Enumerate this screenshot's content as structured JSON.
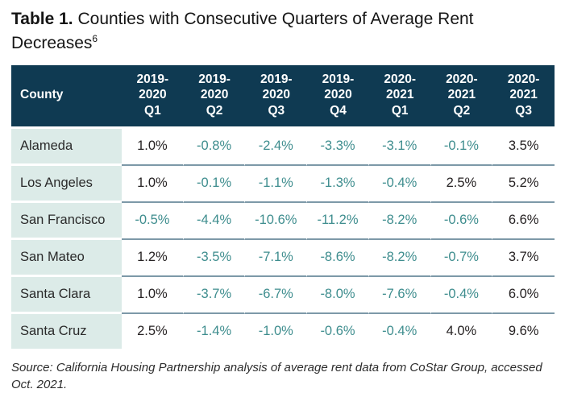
{
  "title": {
    "prefix": "Table 1.",
    "text": " Counties with Consecutive Quarters of Average Rent Decreases",
    "footnote": "6"
  },
  "table": {
    "columns": [
      "County",
      "2019-\n2020\nQ1",
      "2019-\n2020\nQ2",
      "2019-\n2020\nQ3",
      "2019-\n2020\nQ4",
      "2020-\n2021\nQ1",
      "2020-\n2021\nQ2",
      "2020-\n2021\nQ3"
    ],
    "rows": [
      {
        "county": "Alameda",
        "values": [
          "1.0%",
          "-0.8%",
          "-2.4%",
          "-3.3%",
          "-3.1%",
          "-0.1%",
          "3.5%"
        ]
      },
      {
        "county": "Los Angeles",
        "values": [
          "1.0%",
          "-0.1%",
          "-1.1%",
          "-1.3%",
          "-0.4%",
          "2.5%",
          "5.2%"
        ]
      },
      {
        "county": "San Francisco",
        "values": [
          "-0.5%",
          "-4.4%",
          "-10.6%",
          "-11.2%",
          "-8.2%",
          "-0.6%",
          "6.6%"
        ]
      },
      {
        "county": "San Mateo",
        "values": [
          "1.2%",
          "-3.5%",
          "-7.1%",
          "-8.6%",
          "-8.2%",
          "-0.7%",
          "3.7%"
        ]
      },
      {
        "county": "Santa Clara",
        "values": [
          "1.0%",
          "-3.7%",
          "-6.7%",
          "-8.0%",
          "-7.6%",
          "-0.4%",
          "6.0%"
        ]
      },
      {
        "county": "Santa Cruz",
        "values": [
          "2.5%",
          "-1.4%",
          "-1.0%",
          "-0.6%",
          "-0.4%",
          "4.0%",
          "9.6%"
        ]
      }
    ]
  },
  "source": "Source: California Housing Partnership analysis of average rent data from CoStar Group, accessed Oct. 2021.",
  "colors": {
    "header_bg": "#0f3a52",
    "header_text": "#ffffff",
    "county_cell_bg": "#dcebe8",
    "negative_value": "#3e8d8e",
    "positive_value": "#262223",
    "row_divider": "#7d99a8"
  },
  "chart_data": {
    "type": "table",
    "title": "Table 1. Counties with Consecutive Quarters of Average Rent Decreases",
    "columns": [
      "County",
      "2019-2020 Q1",
      "2019-2020 Q2",
      "2019-2020 Q3",
      "2019-2020 Q4",
      "2020-2021 Q1",
      "2020-2021 Q2",
      "2020-2021 Q3"
    ],
    "rows": [
      [
        "Alameda",
        1.0,
        -0.8,
        -2.4,
        -3.3,
        -3.1,
        -0.1,
        3.5
      ],
      [
        "Los Angeles",
        1.0,
        -0.1,
        -1.1,
        -1.3,
        -0.4,
        2.5,
        5.2
      ],
      [
        "San Francisco",
        -0.5,
        -4.4,
        -10.6,
        -11.2,
        -8.2,
        -0.6,
        6.6
      ],
      [
        "San Mateo",
        1.2,
        -3.5,
        -7.1,
        -8.6,
        -8.2,
        -0.7,
        3.7
      ],
      [
        "Santa Clara",
        1.0,
        -3.7,
        -6.7,
        -8.0,
        -7.6,
        -0.4,
        6.0
      ],
      [
        "Santa Cruz",
        2.5,
        -1.4,
        -1.0,
        -0.6,
        -0.4,
        4.0,
        9.6
      ]
    ],
    "units": "percent",
    "source": "Source: California Housing Partnership analysis of average rent data from CoStar Group, accessed Oct. 2021."
  }
}
